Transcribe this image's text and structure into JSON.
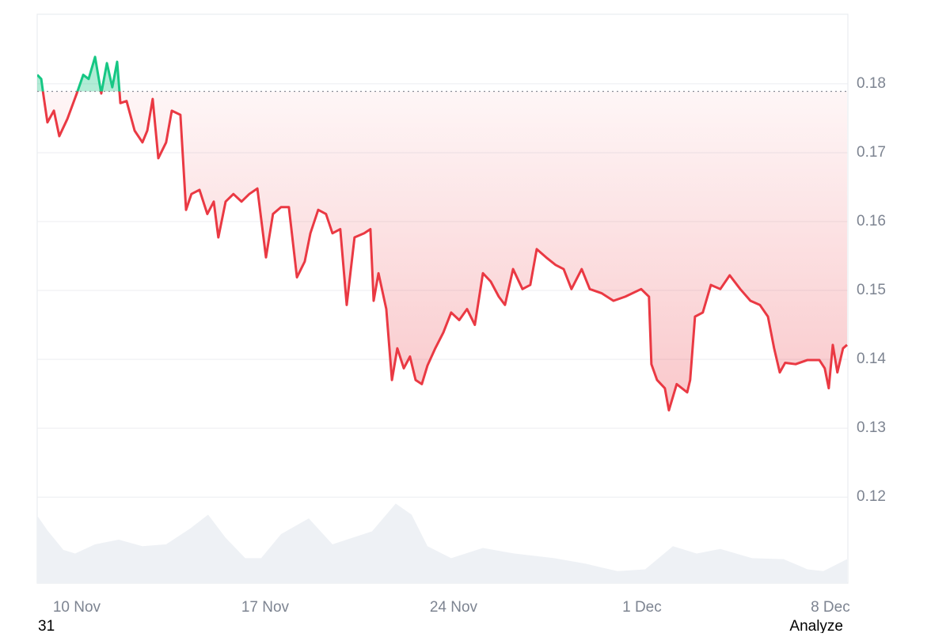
{
  "chart_data": {
    "type": "line",
    "x": [
      8.53,
      8.68,
      8.76,
      8.91,
      9.15,
      9.35,
      9.65,
      10.0,
      10.24,
      10.44,
      10.68,
      10.91,
      11.12,
      11.32,
      11.5,
      11.62,
      11.85,
      12.15,
      12.44,
      12.62,
      12.82,
      13.03,
      13.32,
      13.53,
      13.85,
      14.06,
      14.26,
      14.56,
      14.85,
      15.09,
      15.26,
      15.53,
      15.82,
      16.12,
      16.41,
      16.71,
      17.03,
      17.29,
      17.59,
      17.88,
      18.18,
      18.47,
      18.68,
      18.97,
      19.26,
      19.5,
      19.79,
      20.03,
      20.32,
      20.68,
      20.91,
      21.03,
      21.21,
      21.5,
      21.71,
      21.91,
      22.15,
      22.38,
      22.59,
      22.82,
      23.03,
      23.32,
      23.62,
      23.91,
      24.21,
      24.5,
      24.79,
      25.09,
      25.38,
      25.68,
      25.91,
      26.21,
      26.56,
      26.85,
      27.09,
      27.44,
      27.79,
      28.09,
      28.38,
      28.76,
      29.06,
      29.5,
      29.94,
      30.38,
      30.97,
      31.26,
      31.35,
      31.56,
      31.85,
      32.0,
      32.29,
      32.68,
      32.79,
      32.97,
      33.26,
      33.56,
      33.91,
      34.26,
      34.65,
      35.03,
      35.38,
      35.68,
      35.91,
      36.12,
      36.32,
      36.71,
      37.15,
      37.59,
      37.79,
      37.94,
      38.09,
      38.26,
      38.47,
      38.62
    ],
    "values": [
      0.1813,
      0.1807,
      0.1784,
      0.1744,
      0.1761,
      0.1724,
      0.1749,
      0.1786,
      0.1813,
      0.1807,
      0.1839,
      0.1786,
      0.183,
      0.1795,
      0.1832,
      0.1772,
      0.1775,
      0.1732,
      0.1715,
      0.1732,
      0.1778,
      0.1692,
      0.1715,
      0.1761,
      0.1755,
      0.1617,
      0.164,
      0.1646,
      0.1611,
      0.1629,
      0.1577,
      0.1629,
      0.164,
      0.1629,
      0.164,
      0.1648,
      0.1548,
      0.1611,
      0.1621,
      0.1621,
      0.1519,
      0.1542,
      0.1583,
      0.1617,
      0.1611,
      0.1583,
      0.1589,
      0.1479,
      0.1577,
      0.1583,
      0.1589,
      0.1485,
      0.1525,
      0.1473,
      0.137,
      0.1416,
      0.1387,
      0.1404,
      0.137,
      0.1364,
      0.1391,
      0.1416,
      0.1439,
      0.1468,
      0.1457,
      0.1473,
      0.145,
      0.1525,
      0.1513,
      0.1491,
      0.1479,
      0.1531,
      0.1502,
      0.1508,
      0.156,
      0.1548,
      0.1537,
      0.1531,
      0.1502,
      0.1531,
      0.1502,
      0.1496,
      0.1485,
      0.1491,
      0.1502,
      0.1491,
      0.1393,
      0.137,
      0.1358,
      0.1326,
      0.1364,
      0.1352,
      0.137,
      0.1462,
      0.1468,
      0.1508,
      0.1502,
      0.1522,
      0.1502,
      0.1485,
      0.1479,
      0.1462,
      0.1416,
      0.1381,
      0.1395,
      0.1393,
      0.1399,
      0.1399,
      0.1387,
      0.1358,
      0.1421,
      0.1381,
      0.1416,
      0.1421
    ],
    "baseline": 0.1789,
    "up_color": "#16c784",
    "down_color": "#ea3943",
    "xlim": [
      8.53,
      38.65
    ],
    "xticks": [
      {
        "value": 10,
        "label": "10 Nov"
      },
      {
        "value": 17,
        "label": "17 Nov"
      },
      {
        "value": 24,
        "label": "24 Nov"
      },
      {
        "value": 31,
        "label": "1 Dec"
      },
      {
        "value": 38,
        "label": "8 Dec"
      }
    ],
    "ylim": [
      0.1075,
      0.1901
    ],
    "yticks": [
      0.12,
      0.13,
      0.14,
      0.15,
      0.16,
      0.17,
      0.18
    ],
    "grid": true,
    "volume": {
      "color": "#eef1f5",
      "x": [
        8.53,
        8.91,
        9.5,
        9.94,
        10.68,
        11.56,
        12.44,
        13.32,
        14.21,
        14.88,
        15.53,
        16.26,
        16.85,
        17.59,
        18.62,
        19.5,
        20.24,
        20.97,
        21.85,
        22.44,
        23.03,
        23.91,
        25.09,
        26.26,
        27.74,
        28.91,
        30.09,
        31.12,
        32.15,
        33.03,
        33.91,
        35.09,
        36.26,
        37.15,
        37.74,
        38.62
      ],
      "values": [
        73,
        57,
        36,
        32,
        42,
        47,
        40,
        42,
        59,
        74,
        49,
        27,
        27,
        53,
        70,
        42,
        49,
        56,
        86,
        74,
        40,
        27,
        38,
        32,
        27,
        21,
        13,
        15,
        40,
        32,
        37,
        27,
        26,
        15,
        13,
        26
      ],
      "ylim": [
        0,
        100
      ]
    }
  },
  "footer": {
    "left": "31",
    "right": "Analyze"
  }
}
